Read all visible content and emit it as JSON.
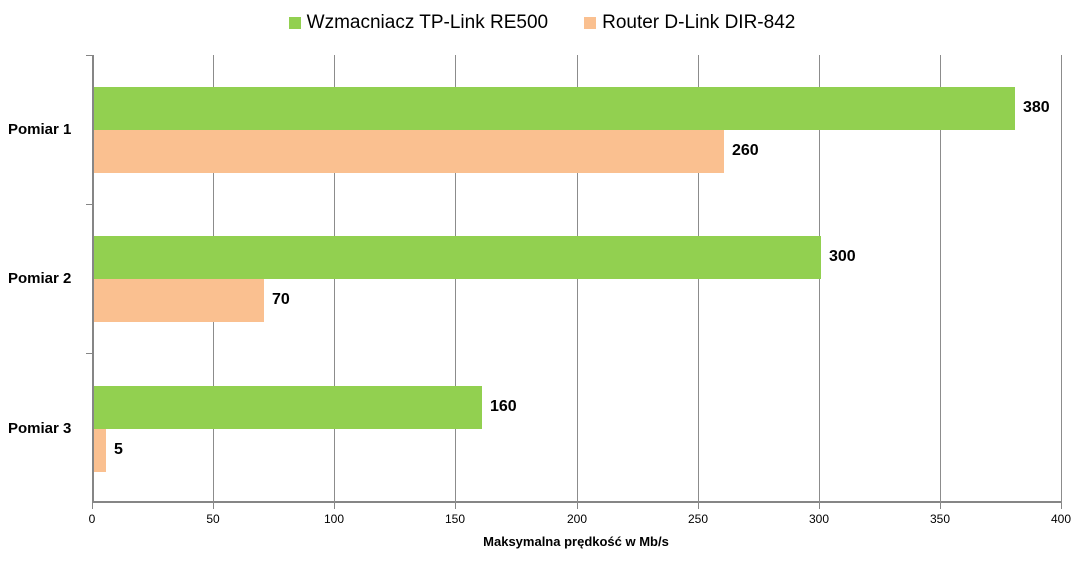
{
  "chart_data": {
    "type": "bar",
    "orientation": "horizontal",
    "title": "",
    "categories": [
      "Pomiar 1",
      "Pomiar 2",
      "Pomiar 3"
    ],
    "series": [
      {
        "name": "Wzmacniacz TP-Link RE500",
        "color": "#92d050",
        "values": [
          380,
          300,
          160
        ]
      },
      {
        "name": "Router D-Link DIR-842",
        "color": "#fac090",
        "values": [
          260,
          70,
          5
        ]
      }
    ],
    "xlabel": "Maksymalna prędkość w Mb/s",
    "ylabel": "",
    "xlim": [
      0,
      400
    ],
    "xticks": [
      "0",
      "50",
      "100",
      "150",
      "200",
      "250",
      "300",
      "350",
      "400"
    ],
    "grid": true,
    "legend_position": "top",
    "data_labels": true
  }
}
